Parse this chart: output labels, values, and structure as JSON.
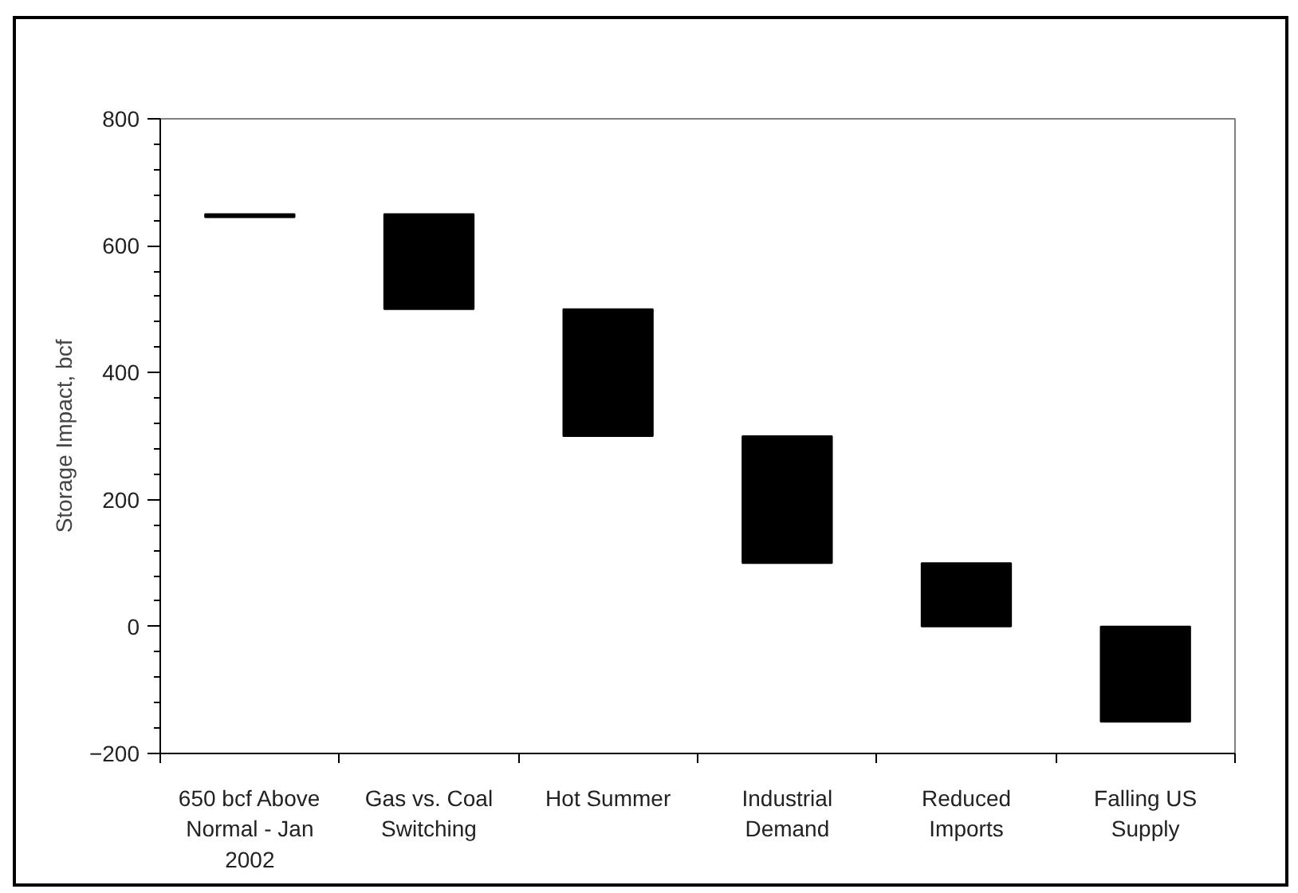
{
  "chart_data": {
    "type": "bar",
    "ylabel": "Storage Impact, bcf",
    "categories": [
      "650 bcf Above Normal - Jan 2002",
      "Gas vs. Coal Switching",
      "Hot Summer",
      "Industrial Demand",
      "Reduced Imports",
      "Falling US Supply"
    ],
    "base": [
      645,
      650,
      500,
      300,
      100,
      0
    ],
    "values": [
      5,
      -150,
      -200,
      -200,
      -100,
      -150
    ],
    "color": "#000000",
    "ylim": [
      -200,
      800
    ],
    "yticks": [
      -200,
      0,
      200,
      400,
      600,
      800
    ],
    "grid": false
  }
}
